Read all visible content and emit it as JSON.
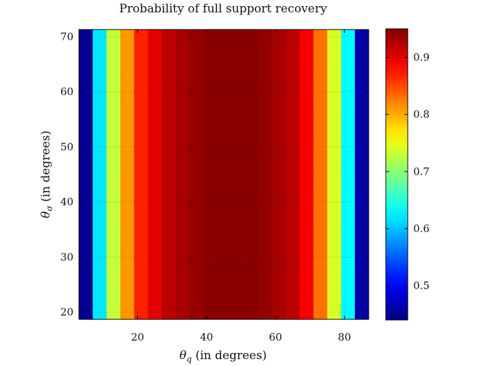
{
  "chart_data": {
    "type": "heatmap",
    "title": "Probability of full support recovery",
    "xlabel": {
      "symbol": "θ",
      "subscript": "q",
      "text": " (in degrees)"
    },
    "ylabel": {
      "symbol": "θ",
      "subscript": "σ",
      "text": " (in degrees)"
    },
    "xlim": [
      3,
      87
    ],
    "ylim": [
      18.7,
      71.3
    ],
    "x_ticks": [
      20,
      40,
      60,
      80
    ],
    "y_ticks": [
      20,
      30,
      40,
      50,
      60,
      70
    ],
    "grid": "dotted",
    "colormap": "jet",
    "color_range": [
      0.44,
      0.95
    ],
    "colorbar_ticks": [
      0.5,
      0.6,
      0.7,
      0.8,
      0.9
    ],
    "x_cells": [
      5,
      9,
      13,
      17,
      21,
      25,
      29,
      33,
      37,
      41,
      45,
      49,
      53,
      57,
      61,
      65,
      69,
      73,
      77,
      81,
      85
    ],
    "y_cells": [
      19.5,
      21.5,
      23.5,
      25.5,
      27.5,
      29.5,
      31.5,
      33.5,
      35.5,
      37.5,
      39.5,
      41.5,
      43.5,
      45.5,
      47.5,
      49.5,
      51.5,
      53.5,
      55.5,
      57.5,
      59.5,
      61.5,
      63.5,
      65.5,
      67.5,
      69.5,
      71.0
    ],
    "column_mean_values": [
      0.45,
      0.62,
      0.73,
      0.81,
      0.87,
      0.9,
      0.92,
      0.93,
      0.94,
      0.945,
      0.945,
      0.945,
      0.945,
      0.94,
      0.93,
      0.92,
      0.89,
      0.83,
      0.74,
      0.63,
      0.46
    ]
  }
}
